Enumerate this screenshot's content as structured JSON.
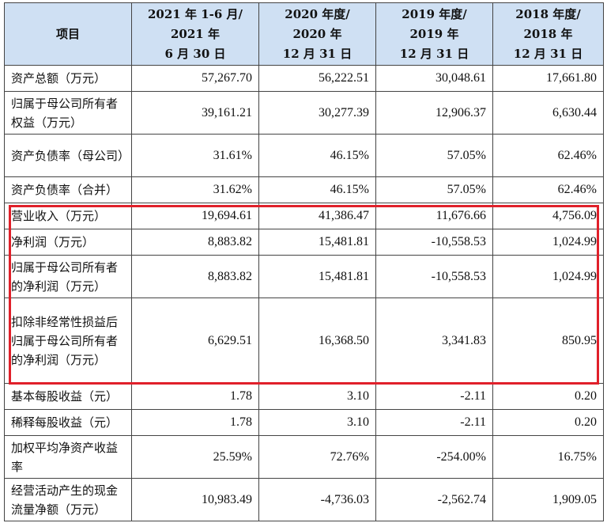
{
  "table": {
    "header": [
      "项目",
      "2021 年 1-6 月/\n2021 年\n6 月 30 日",
      "2020 年度/\n2020 年\n12 月 31 日",
      "2019 年度/\n2019 年\n12 月 31 日",
      "2018 年度/\n2018 年\n12 月 31 日"
    ],
    "rows": [
      {
        "label": "资产总额（万元）",
        "values": [
          "57,267.70",
          "56,222.51",
          "30,048.61",
          "17,661.80"
        ]
      },
      {
        "label": "归属于母公司所有者权益（万元）",
        "values": [
          "39,161.21",
          "30,277.39",
          "12,906.37",
          "6,630.44"
        ]
      },
      {
        "label": "资产负债率（母公司）",
        "values": [
          "31.61%",
          "46.15%",
          "57.05%",
          "62.46%"
        ]
      },
      {
        "label": "资产负债率（合并）",
        "values": [
          "31.62%",
          "46.15%",
          "57.05%",
          "62.46%"
        ]
      },
      {
        "label": "营业收入（万元）",
        "values": [
          "19,694.61",
          "41,386.47",
          "11,676.66",
          "4,756.09"
        ]
      },
      {
        "label": "净利润（万元）",
        "values": [
          "8,883.82",
          "15,481.81",
          "-10,558.53",
          "1,024.99"
        ]
      },
      {
        "label": "归属于母公司所有者的净利润（万元）",
        "values": [
          "8,883.82",
          "15,481.81",
          "-10,558.53",
          "1,024.99"
        ]
      },
      {
        "label": "扣除非经常性损益后归属于母公司所有者的净利润（万元）",
        "values": [
          "6,629.51",
          "16,368.50",
          "3,341.83",
          "850.95"
        ]
      },
      {
        "label": "基本每股收益（元）",
        "values": [
          "1.78",
          "3.10",
          "-2.11",
          "0.20"
        ]
      },
      {
        "label": "稀释每股收益（元）",
        "values": [
          "1.78",
          "3.10",
          "-2.11",
          "0.20"
        ]
      },
      {
        "label": "加权平均净资产收益率",
        "values": [
          "25.59%",
          "72.76%",
          "-254.00%",
          "16.75%"
        ]
      },
      {
        "label": "经营活动产生的现金流量净额（万元）",
        "values": [
          "10,983.49",
          "-4,736.03",
          "-2,562.74",
          "1,909.05"
        ]
      }
    ]
  },
  "highlight": {
    "color": "#e0202a",
    "from_row": 4,
    "to_row": 7
  }
}
